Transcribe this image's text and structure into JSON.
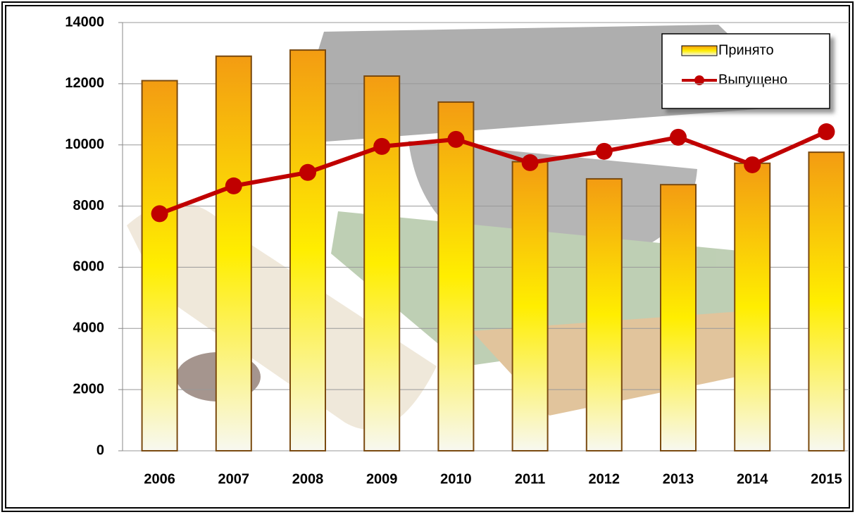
{
  "chart_data": {
    "type": "bar",
    "categories": [
      "2006",
      "2007",
      "2008",
      "2009",
      "2010",
      "2011",
      "2012",
      "2013",
      "2014",
      "2015"
    ],
    "series": [
      {
        "name": "Принято",
        "color": "#f39c12",
        "values": [
          12100,
          12900,
          13100,
          12250,
          11400,
          9450,
          8890,
          8700,
          9400,
          9760
        ]
      },
      {
        "name": "Выпущено",
        "type": "line",
        "color": "#c00000",
        "values": [
          7750,
          8660,
          9100,
          9950,
          10180,
          9420,
          9790,
          10250,
          9350,
          10430
        ]
      }
    ],
    "ylim": [
      0,
      14000
    ],
    "yticks": [
      0,
      2000,
      4000,
      6000,
      8000,
      10000,
      12000,
      14000
    ],
    "grid": true,
    "legend": "top-right"
  }
}
